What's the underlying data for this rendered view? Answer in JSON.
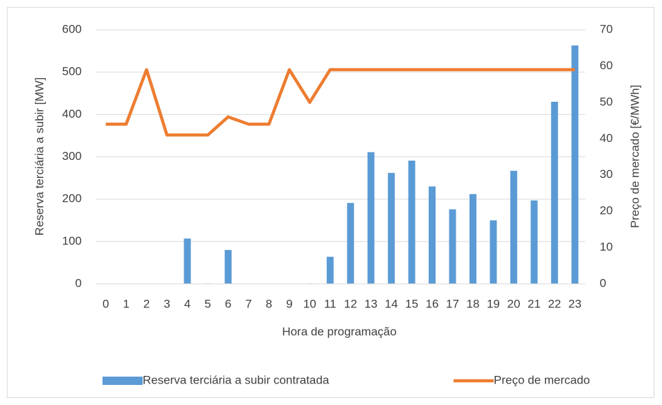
{
  "chart_data": {
    "type": "bar_line",
    "categories": [
      "0",
      "1",
      "2",
      "3",
      "4",
      "5",
      "6",
      "7",
      "8",
      "9",
      "10",
      "11",
      "12",
      "13",
      "14",
      "15",
      "16",
      "17",
      "18",
      "19",
      "20",
      "21",
      "22",
      "23"
    ],
    "series": [
      {
        "name": "Reserva terciária a subir contratada",
        "type": "bar",
        "color": "#5b9bd5",
        "axis": "y",
        "values": [
          0,
          0,
          0,
          0,
          107,
          1,
          80,
          0,
          0,
          0,
          1,
          64,
          191,
          311,
          262,
          291,
          230,
          176,
          212,
          150,
          267,
          197,
          430,
          563
        ]
      },
      {
        "name": "Preço de mercado",
        "type": "line",
        "color": "#ed7d31",
        "axis": "y2",
        "values": [
          44,
          44,
          59,
          41,
          41,
          41,
          46,
          44,
          44,
          59,
          50,
          59,
          59,
          59,
          59,
          59,
          59,
          59,
          59,
          59,
          59,
          59,
          59,
          59
        ]
      }
    ],
    "xlabel": "Hora de programação",
    "ylabel": "Reserva terciária a subir [MW]",
    "y2label": "Preço de mercado [€/MWh]",
    "ylim": [
      0,
      600
    ],
    "yticks": [
      0,
      100,
      200,
      300,
      400,
      500,
      600
    ],
    "y2lim": [
      0,
      70
    ],
    "y2ticks": [
      0,
      10,
      20,
      30,
      40,
      50,
      60,
      70
    ],
    "grid": true,
    "legend": "bottom"
  }
}
